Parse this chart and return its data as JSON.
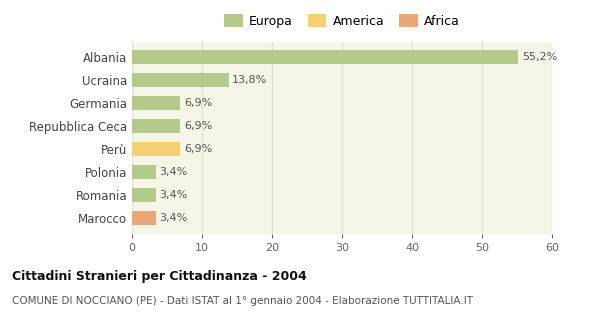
{
  "categories": [
    "Albania",
    "Ucraina",
    "Germania",
    "Repubblica Ceca",
    "Perù",
    "Polonia",
    "Romania",
    "Marocco"
  ],
  "values": [
    55.2,
    13.8,
    6.9,
    6.9,
    6.9,
    3.4,
    3.4,
    3.4
  ],
  "labels": [
    "55,2%",
    "13,8%",
    "6,9%",
    "6,9%",
    "6,9%",
    "3,4%",
    "3,4%",
    "3,4%"
  ],
  "colors": [
    "#b5c98a",
    "#b5c98a",
    "#b5c98a",
    "#b5c98a",
    "#f5d070",
    "#b5c98a",
    "#b5c98a",
    "#e8a878"
  ],
  "legend_labels": [
    "Europa",
    "America",
    "Africa"
  ],
  "legend_colors": [
    "#b5c98a",
    "#f5d070",
    "#e8a878"
  ],
  "title": "Cittadini Stranieri per Cittadinanza - 2004",
  "subtitle": "COMUNE DI NOCCIANO (PE) - Dati ISTAT al 1° gennaio 2004 - Elaborazione TUTTITALIA.IT",
  "xlim": [
    0,
    60
  ],
  "xticks": [
    0,
    10,
    20,
    30,
    40,
    50,
    60
  ],
  "bg_color": "#ffffff",
  "plot_bg_color": "#f5f5e8",
  "grid_color": "#e0e0cc"
}
